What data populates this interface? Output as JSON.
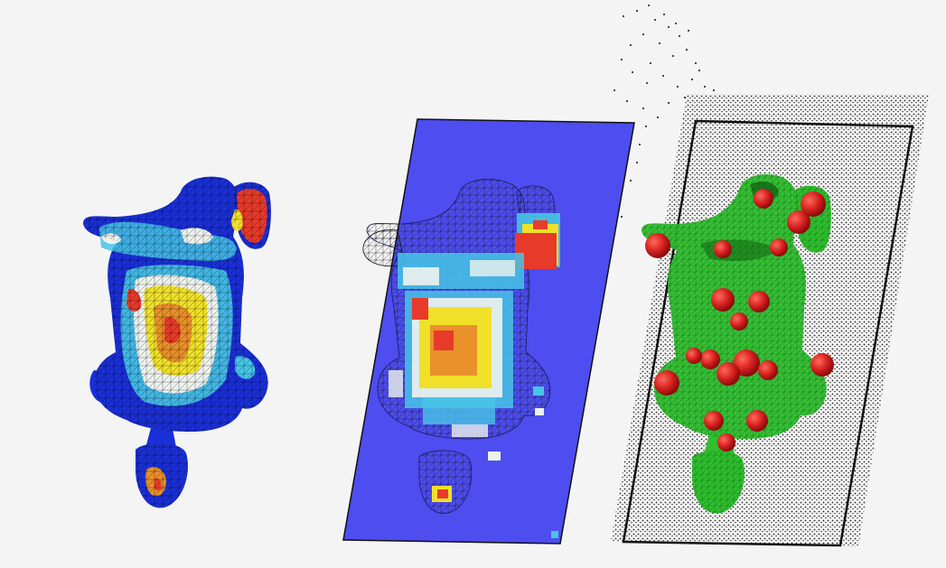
{
  "scene": {
    "background": "#f4f4f4",
    "panels": [
      {
        "id": "pressure-heatmap-mesh",
        "description_icon": "body-mesh-heatmap-icon"
      },
      {
        "id": "pressure-grid-overlay",
        "description_icon": "pressure-grid-icon"
      },
      {
        "id": "point-cloud-fit",
        "description_icon": "point-cloud-icon"
      }
    ],
    "colors": {
      "low": "#1a2fd6",
      "lowmid": "#47c6e6",
      "mid": "#eef2ee",
      "midhigh": "#f0e02a",
      "high": "#e83a2a",
      "plane": "#4d4df0",
      "mesh_green": "#2fbf2f",
      "joint_red": "#d41e1e",
      "point_black": "#111111"
    }
  }
}
